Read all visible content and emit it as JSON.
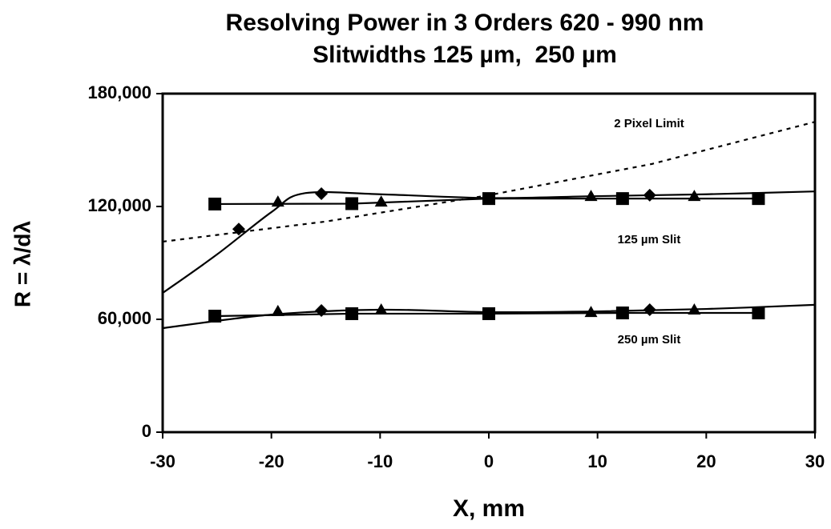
{
  "chart_data": {
    "type": "scatter",
    "title": [
      "Resolving Power in 3 Orders 620 - 990 nm",
      "Slitwidths 125 µm,  250 µm"
    ],
    "x_label": "X, mm",
    "y_label": "R = λ/dλ",
    "xlim": [
      -30,
      30
    ],
    "xticks": [
      -30,
      -20,
      -10,
      0,
      10,
      20,
      30
    ],
    "ylim": [
      0,
      180000
    ],
    "yticks": [
      0,
      {
        "value": 60000,
        "label": "60,000"
      },
      {
        "value": 120000,
        "label": "120,000"
      },
      {
        "value": 180000,
        "label": "180,000"
      }
    ],
    "annotations": [
      "2 Pixel Limit",
      "125 µm Slit",
      "250 µm Slit"
    ],
    "series": [
      {
        "color": "#000000",
        "marker": "square",
        "line": "solid",
        "x": [
          -25.2,
          -12.6,
          0,
          12.3,
          24.8
        ],
        "values": [
          121300,
          121500,
          124200,
          124200,
          124200
        ]
      },
      {
        "color": "#000000",
        "marker": "diamond",
        "line": "none",
        "x": [
          -23,
          -15.4,
          14.8
        ],
        "values": [
          108000,
          126800,
          126000
        ]
      },
      {
        "color": "#000000",
        "marker": "triangle",
        "line": "none",
        "x": [
          -19.4,
          -9.9,
          9.4,
          18.9
        ],
        "values": [
          122500,
          122500,
          125500,
          125500
        ]
      },
      {
        "color": "#000000",
        "marker": "none",
        "line": "smooth",
        "x": [
          -30,
          -25,
          -20,
          -17,
          -10,
          0,
          10,
          20,
          30
        ],
        "values": [
          74000,
          94500,
          117000,
          127000,
          126500,
          124500,
          125500,
          126500,
          128000
        ]
      },
      {
        "color": "#000000",
        "marker": "none",
        "line": "dashed",
        "x": [
          -30,
          -15,
          0,
          15,
          30
        ],
        "values": [
          101300,
          112000,
          126000,
          142600,
          165000
        ]
      },
      {
        "color": "#000000",
        "marker": "square",
        "line": "solid",
        "x": [
          -25.2,
          -12.6,
          0,
          12.3,
          24.8
        ],
        "values": [
          61700,
          63000,
          63000,
          63400,
          63400
        ]
      },
      {
        "color": "#000000",
        "marker": "diamond",
        "line": "none",
        "x": [
          -15.4,
          14.8
        ],
        "values": [
          64700,
          65100
        ]
      },
      {
        "color": "#000000",
        "marker": "triangle",
        "line": "none",
        "x": [
          -19.4,
          -9.9,
          9.4,
          18.9
        ],
        "values": [
          64300,
          65100,
          63800,
          65100
        ]
      },
      {
        "color": "#000000",
        "marker": "none",
        "line": "smooth",
        "x": [
          -30,
          -20,
          -10,
          0,
          10,
          20,
          30
        ],
        "values": [
          55300,
          62500,
          65100,
          63800,
          64200,
          65500,
          67700
        ]
      }
    ]
  }
}
